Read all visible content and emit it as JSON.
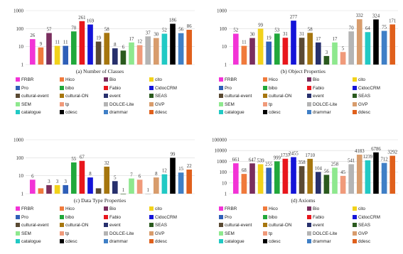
{
  "series_colors": [
    "#f233d6",
    "#f07a3c",
    "#7a2e5e",
    "#f2d21a",
    "#2f5fb8",
    "#21a83b",
    "#e8161c",
    "#1414d8",
    "#5a4a33",
    "#a6760e",
    "#27306d",
    "#2a5a1e",
    "#8ee88e",
    "#f09a7a",
    "#b4b4b4",
    "#d89c6c",
    "#21c9c4",
    "#000000",
    "#3f7fc6",
    "#e0601c"
  ],
  "chart_data": [
    {
      "type": "bar",
      "caption": "(a) Number of Classes",
      "y_scale": "log",
      "ylim": [
        1,
        1000
      ],
      "y_ticks": [
        "1",
        "10",
        "100",
        "1000"
      ],
      "categories": [
        "FRBR",
        "Hico",
        "Bio",
        "cito",
        "Pro",
        "bibo",
        "Fabio",
        "CidocCRM",
        "cultural-event",
        "cultural-ON",
        "event",
        "SEAS",
        "SEM",
        "tp",
        "DOLCE-Lite",
        "GVP",
        "catalogue",
        "cdesc",
        "drammar",
        "ddesc"
      ],
      "values": [
        26,
        9,
        57,
        11,
        11,
        70,
        261,
        169,
        19,
        58,
        8,
        6,
        17,
        12,
        37,
        30,
        52,
        186,
        56,
        86
      ],
      "value_labels": [
        "26",
        "9",
        "57",
        "11",
        "11",
        "70",
        "261",
        "169",
        "19",
        "58",
        "8",
        "6",
        "17",
        "12",
        "37",
        "30",
        "52",
        "186",
        "56",
        "86"
      ]
    },
    {
      "type": "bar",
      "caption": "(b) Object Properties",
      "y_scale": "log",
      "ylim": [
        1,
        1000
      ],
      "y_ticks": [
        "1",
        "10",
        "100",
        "1000"
      ],
      "categories": [
        "FRBR",
        "Hico",
        "Bio",
        "cito",
        "Pro",
        "bibo",
        "Fabio",
        "CidocCRM",
        "cultural-event",
        "cultural-ON",
        "event",
        "SEAS",
        "SEM",
        "tp",
        "DOLCE-Lite",
        "GVP",
        "catalogue",
        "cdesc",
        "drammar",
        "ddesc"
      ],
      "values": [
        52,
        11,
        30,
        99,
        19,
        53,
        31,
        277,
        31,
        58,
        17,
        3,
        17,
        5,
        70,
        332,
        64,
        324,
        75,
        171
      ],
      "value_labels": [
        "52",
        "11",
        "30",
        "99",
        "19",
        "53",
        "31",
        "277",
        "31",
        "58",
        "17",
        "3",
        "17",
        "5",
        "70",
        "332",
        "64",
        "324",
        "75",
        "171"
      ]
    },
    {
      "type": "bar",
      "caption": "(c) Data Type Properties",
      "y_scale": "log",
      "ylim": [
        1,
        1000
      ],
      "y_ticks": [
        "1",
        "10",
        "100",
        "1000"
      ],
      "categories": [
        "FRBR",
        "Hico",
        "Bio",
        "cito",
        "Pro",
        "bibo",
        "Fabio",
        "CidocCRM",
        "cultural-event",
        "cultural-ON",
        "event",
        "SEAS",
        "SEM",
        "tp",
        "DOLCE-Lite",
        "GVP",
        "catalogue",
        "cdesc",
        "drammar",
        "ddesc"
      ],
      "values": [
        6,
        2,
        3,
        3,
        3,
        55,
        67,
        8,
        2,
        32,
        5,
        1,
        7,
        6,
        1,
        8,
        12,
        99,
        15,
        22
      ],
      "value_labels": [
        "6",
        "",
        "3",
        "3",
        "3",
        "55",
        "67",
        "8",
        "",
        "32",
        "5",
        "1",
        "7",
        "6",
        "1",
        "8",
        "12",
        "99",
        "15",
        "22"
      ]
    },
    {
      "type": "bar",
      "caption": "(d) Axioms",
      "y_scale": "log",
      "ylim": [
        1,
        100000
      ],
      "y_ticks": [
        "1",
        "10",
        "100",
        "1000",
        "10000",
        "100000"
      ],
      "categories": [
        "FRBR",
        "Hico",
        "Bio",
        "cito",
        "Pro",
        "bibo",
        "Fabio",
        "CidocCRM",
        "cultural-event",
        "cultural-ON",
        "event",
        "SEAS",
        "SEM",
        "tp",
        "DOLCE-Lite",
        "GVP",
        "catalogue",
        "cdesc",
        "drammar",
        "ddesc"
      ],
      "values": [
        661,
        68,
        647,
        539,
        255,
        999,
        1737,
        2455,
        358,
        1710,
        104,
        56,
        258,
        45,
        541,
        4183,
        1239,
        6786,
        712,
        3292
      ],
      "value_labels": [
        "661",
        "68",
        "647",
        "539",
        "255",
        "999",
        "1737",
        "2455",
        "358",
        "1710",
        "104",
        "56",
        "258",
        "45",
        "541",
        "4183",
        "1239",
        "6786",
        "712",
        "3292"
      ]
    }
  ]
}
